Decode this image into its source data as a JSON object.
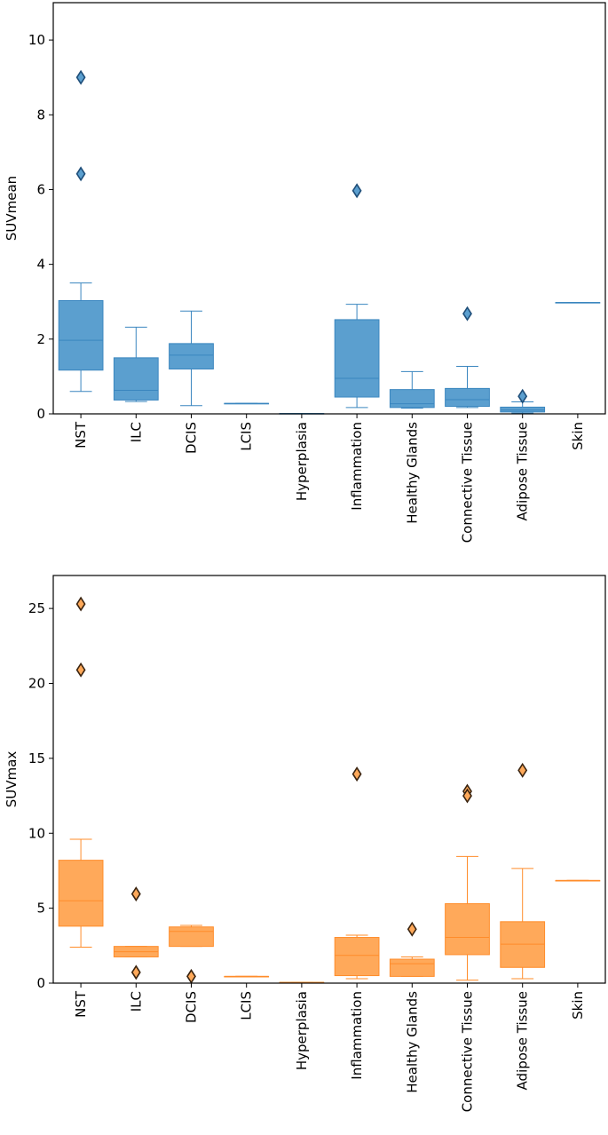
{
  "chart_data": [
    {
      "type": "box",
      "ylabel": "SUVmean",
      "ylim": [
        0,
        11
      ],
      "yticks": [
        0,
        2,
        4,
        6,
        8,
        10
      ],
      "ytick_labels": [
        "0",
        "2",
        "4",
        "6",
        "8",
        "10"
      ],
      "color": "#5b9fcf",
      "edge_color": "#3a86bf",
      "outlier_color": "#1f4e79",
      "categories": [
        "NST",
        "ILC",
        "DCIS",
        "LCIS",
        "Hyperplasia",
        "Inflammation",
        "Healthy Glands",
        "Connective Tissue",
        "Adipose Tissue",
        "Skin"
      ],
      "boxes": [
        {
          "whislo": 0.6,
          "q1": 1.17,
          "med": 1.97,
          "q3": 3.03,
          "whishi": 3.5,
          "fliers": [
            9.0,
            6.42
          ]
        },
        {
          "whislo": 0.33,
          "q1": 0.37,
          "med": 0.63,
          "q3": 1.5,
          "whishi": 2.32,
          "fliers": []
        },
        {
          "whislo": 0.22,
          "q1": 1.2,
          "med": 1.57,
          "q3": 1.88,
          "whishi": 2.75,
          "fliers": []
        },
        {
          "whislo": 0.28,
          "q1": 0.28,
          "med": 0.28,
          "q3": 0.28,
          "whishi": 0.28,
          "fliers": []
        },
        {
          "whislo": 0.01,
          "q1": 0.01,
          "med": 0.01,
          "q3": 0.01,
          "whishi": 0.01,
          "fliers": []
        },
        {
          "whislo": 0.17,
          "q1": 0.45,
          "med": 0.95,
          "q3": 2.52,
          "whishi": 2.93,
          "fliers": [
            5.97
          ]
        },
        {
          "whislo": 0.15,
          "q1": 0.17,
          "med": 0.27,
          "q3": 0.65,
          "whishi": 1.13,
          "fliers": []
        },
        {
          "whislo": 0.17,
          "q1": 0.2,
          "med": 0.38,
          "q3": 0.68,
          "whishi": 1.27,
          "fliers": [
            2.68
          ]
        },
        {
          "whislo": 0.02,
          "q1": 0.05,
          "med": 0.1,
          "q3": 0.18,
          "whishi": 0.32,
          "fliers": [
            0.47
          ]
        },
        {
          "whislo": 2.98,
          "q1": 2.98,
          "med": 2.98,
          "q3": 2.98,
          "whishi": 2.98,
          "fliers": []
        }
      ]
    },
    {
      "type": "box",
      "ylabel": "SUVmax",
      "ylim": [
        0,
        27.2
      ],
      "yticks": [
        0,
        5,
        10,
        15,
        20,
        25
      ],
      "ytick_labels": [
        "0",
        "5",
        "10",
        "15",
        "20",
        "25"
      ],
      "color": "#ffa95a",
      "edge_color": "#ff8c2a",
      "outlier_color": "#3a2410",
      "categories": [
        "NST",
        "ILC",
        "DCIS",
        "LCIS",
        "Hyperplasia",
        "Inflammation",
        "Healthy Glands",
        "Connective Tissue",
        "Adipose Tissue",
        "Skin"
      ],
      "boxes": [
        {
          "whislo": 2.4,
          "q1": 3.8,
          "med": 5.5,
          "q3": 8.2,
          "whishi": 9.6,
          "fliers": [
            25.3,
            20.9
          ]
        },
        {
          "whislo": 1.75,
          "q1": 1.75,
          "med": 2.1,
          "q3": 2.45,
          "whishi": 2.45,
          "fliers": [
            5.95,
            0.72
          ]
        },
        {
          "whislo": 2.45,
          "q1": 2.45,
          "med": 3.45,
          "q3": 3.75,
          "whishi": 3.85,
          "fliers": [
            0.45
          ]
        },
        {
          "whislo": 0.45,
          "q1": 0.45,
          "med": 0.45,
          "q3": 0.45,
          "whishi": 0.45,
          "fliers": []
        },
        {
          "whislo": 0.05,
          "q1": 0.05,
          "med": 0.05,
          "q3": 0.05,
          "whishi": 0.05,
          "fliers": []
        },
        {
          "whislo": 0.3,
          "q1": 0.5,
          "med": 1.85,
          "q3": 3.05,
          "whishi": 3.2,
          "fliers": [
            13.95
          ]
        },
        {
          "whislo": 0.45,
          "q1": 0.45,
          "med": 1.3,
          "q3": 1.6,
          "whishi": 1.75,
          "fliers": [
            3.6
          ]
        },
        {
          "whislo": 0.2,
          "q1": 1.9,
          "med": 3.05,
          "q3": 5.3,
          "whishi": 8.45,
          "fliers": [
            12.8,
            12.5
          ]
        },
        {
          "whislo": 0.3,
          "q1": 1.05,
          "med": 2.6,
          "q3": 4.1,
          "whishi": 7.65,
          "fliers": [
            14.2
          ]
        },
        {
          "whislo": 6.85,
          "q1": 6.85,
          "med": 6.85,
          "q3": 6.85,
          "whishi": 6.85,
          "fliers": []
        }
      ]
    }
  ]
}
